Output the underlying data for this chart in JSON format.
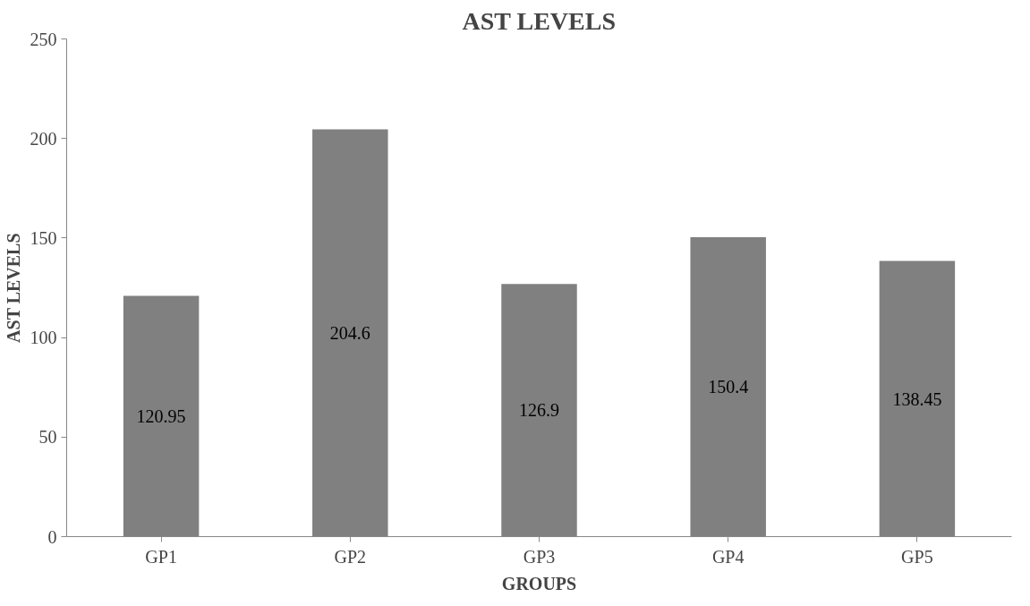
{
  "chart_data": {
    "type": "bar",
    "title": "AST LEVELS",
    "xlabel": "GROUPS",
    "ylabel": "AST LEVELS",
    "categories": [
      "GP1",
      "GP2",
      "GP3",
      "GP4",
      "GP5"
    ],
    "values": [
      120.95,
      204.6,
      126.9,
      150.4,
      138.45
    ],
    "color": "#808080",
    "ylim": [
      0,
      250
    ],
    "yticks": [
      0,
      50,
      100,
      150,
      200,
      250
    ],
    "grid": false,
    "data_labels": true
  }
}
